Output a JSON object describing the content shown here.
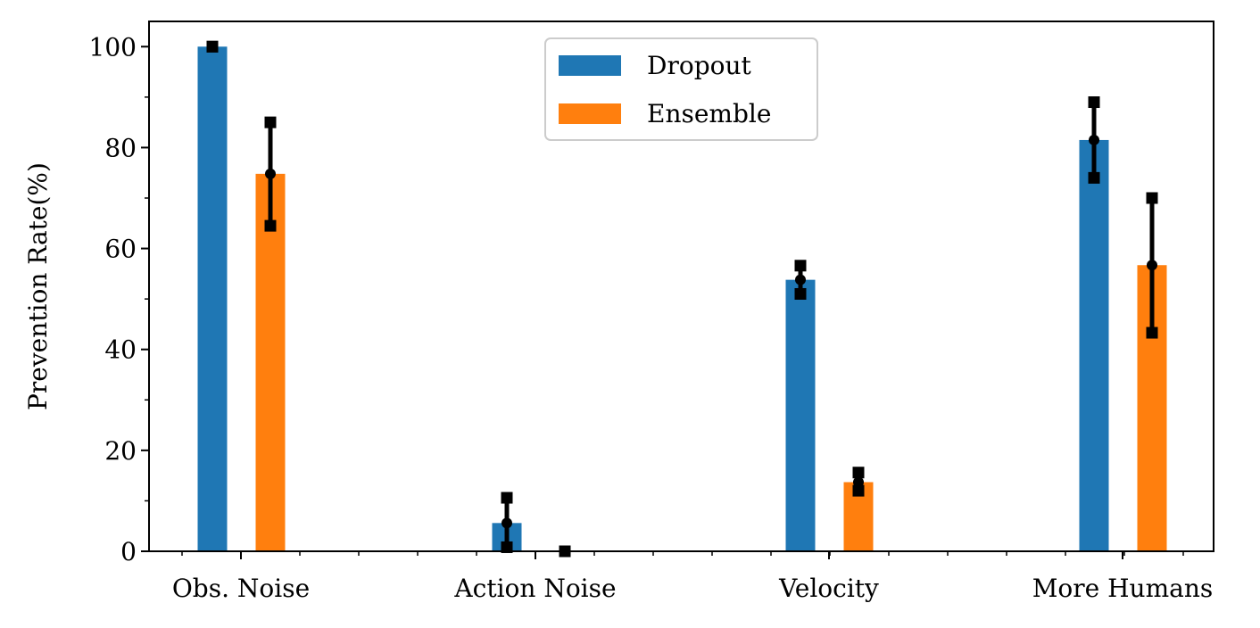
{
  "chart_data": {
    "type": "bar",
    "title": "",
    "xlabel": "",
    "ylabel": "Prevention Rate(%)",
    "ylim": [
      0,
      105
    ],
    "yticks": [
      0,
      20,
      40,
      60,
      80,
      100
    ],
    "ytick_labels": [
      "0",
      "20",
      "40",
      "60",
      "80",
      "100"
    ],
    "categories": [
      "Obs. Noise",
      "Action Noise",
      "Velocity",
      "More Humans"
    ],
    "legend_position": "top-center",
    "series": [
      {
        "name": "Dropout",
        "color": "#1f77b4",
        "values": [
          100,
          5.6,
          53.8,
          81.5
        ],
        "error_low": [
          100,
          0.8,
          51,
          74
        ],
        "error_high": [
          100,
          10.6,
          56.6,
          89
        ]
      },
      {
        "name": "Ensemble",
        "color": "#ff7f0e",
        "values": [
          74.8,
          0,
          13.7,
          56.7
        ],
        "error_low": [
          64.5,
          0,
          12,
          43.3
        ],
        "error_high": [
          85,
          0,
          15.6,
          70
        ]
      }
    ]
  }
}
